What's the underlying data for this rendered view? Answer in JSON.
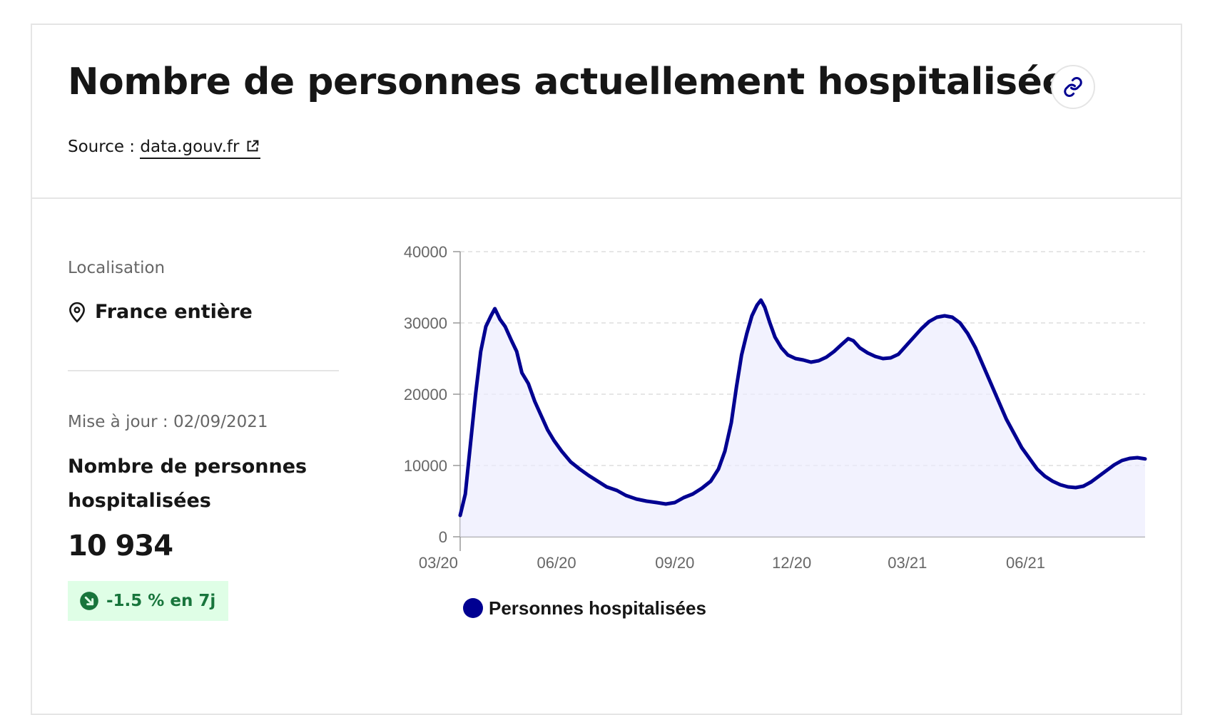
{
  "header": {
    "title": "Nombre de personnes actuellement hospitalisées",
    "source_label": "Source :",
    "source_link": "data.gouv.fr",
    "link_icon": "link-icon",
    "external_icon": "external-link-icon"
  },
  "location": {
    "label": "Localisation",
    "value": "France entière",
    "icon": "map-pin-icon"
  },
  "indicator": {
    "updated": "Mise à jour : 02/09/2021",
    "title": "Nombre de personnes hospitalisées",
    "value": "10 934",
    "trend": "-1.5 % en 7j",
    "trend_icon": "arrow-down-right-icon",
    "trend_color": "#18753c",
    "trend_bg": "#dffee6"
  },
  "colors": {
    "line": "#000091",
    "fill": "#ececfe",
    "grid": "#dddddd",
    "axis": "#666666"
  },
  "chart_data": {
    "type": "area",
    "title": "",
    "xlabel": "",
    "ylabel": "",
    "ylim": [
      0,
      40000
    ],
    "yticks": [
      0,
      10000,
      20000,
      30000,
      40000
    ],
    "xticks": [
      "03/20",
      "06/20",
      "09/20",
      "12/20",
      "03/21",
      "06/21"
    ],
    "xlim": [
      "2020-03-18",
      "2021-09-02"
    ],
    "grid": true,
    "legend_position": "bottom",
    "series": [
      {
        "name": "Personnes hospitalisées",
        "color": "#000091",
        "points": [
          [
            "2020-03-18",
            3000
          ],
          [
            "2020-03-22",
            6000
          ],
          [
            "2020-03-26",
            13000
          ],
          [
            "2020-03-30",
            20000
          ],
          [
            "2020-04-03",
            26000
          ],
          [
            "2020-04-07",
            29500
          ],
          [
            "2020-04-11",
            31000
          ],
          [
            "2020-04-14",
            32000
          ],
          [
            "2020-04-18",
            30500
          ],
          [
            "2020-04-22",
            29500
          ],
          [
            "2020-04-27",
            27500
          ],
          [
            "2020-05-01",
            26000
          ],
          [
            "2020-05-05",
            23000
          ],
          [
            "2020-05-10",
            21500
          ],
          [
            "2020-05-15",
            19000
          ],
          [
            "2020-05-20",
            17000
          ],
          [
            "2020-05-25",
            15000
          ],
          [
            "2020-05-30",
            13500
          ],
          [
            "2020-06-05",
            12000
          ],
          [
            "2020-06-12",
            10500
          ],
          [
            "2020-06-19",
            9500
          ],
          [
            "2020-06-26",
            8600
          ],
          [
            "2020-07-03",
            7800
          ],
          [
            "2020-07-10",
            7000
          ],
          [
            "2020-07-18",
            6500
          ],
          [
            "2020-07-25",
            5800
          ],
          [
            "2020-08-02",
            5300
          ],
          [
            "2020-08-10",
            5000
          ],
          [
            "2020-08-18",
            4800
          ],
          [
            "2020-08-25",
            4600
          ],
          [
            "2020-09-01",
            4800
          ],
          [
            "2020-09-08",
            5500
          ],
          [
            "2020-09-15",
            6000
          ],
          [
            "2020-09-22",
            6800
          ],
          [
            "2020-09-29",
            7800
          ],
          [
            "2020-10-05",
            9500
          ],
          [
            "2020-10-10",
            12000
          ],
          [
            "2020-10-15",
            16000
          ],
          [
            "2020-10-19",
            21000
          ],
          [
            "2020-10-23",
            25500
          ],
          [
            "2020-10-27",
            28500
          ],
          [
            "2020-10-31",
            31000
          ],
          [
            "2020-11-04",
            32500
          ],
          [
            "2020-11-07",
            33200
          ],
          [
            "2020-11-10",
            32200
          ],
          [
            "2020-11-14",
            30000
          ],
          [
            "2020-11-18",
            28000
          ],
          [
            "2020-11-23",
            26500
          ],
          [
            "2020-11-28",
            25500
          ],
          [
            "2020-12-04",
            25000
          ],
          [
            "2020-12-10",
            24800
          ],
          [
            "2020-12-16",
            24500
          ],
          [
            "2020-12-22",
            24700
          ],
          [
            "2020-12-28",
            25200
          ],
          [
            "2021-01-03",
            26000
          ],
          [
            "2021-01-09",
            27000
          ],
          [
            "2021-01-14",
            27800
          ],
          [
            "2021-01-18",
            27500
          ],
          [
            "2021-01-23",
            26500
          ],
          [
            "2021-01-29",
            25800
          ],
          [
            "2021-02-04",
            25300
          ],
          [
            "2021-02-10",
            25000
          ],
          [
            "2021-02-16",
            25100
          ],
          [
            "2021-02-22",
            25600
          ],
          [
            "2021-02-28",
            26800
          ],
          [
            "2021-03-06",
            28000
          ],
          [
            "2021-03-12",
            29200
          ],
          [
            "2021-03-18",
            30200
          ],
          [
            "2021-03-24",
            30800
          ],
          [
            "2021-03-30",
            31000
          ],
          [
            "2021-04-05",
            30800
          ],
          [
            "2021-04-11",
            30000
          ],
          [
            "2021-04-17",
            28500
          ],
          [
            "2021-04-23",
            26500
          ],
          [
            "2021-04-29",
            24000
          ],
          [
            "2021-05-05",
            21500
          ],
          [
            "2021-05-11",
            19000
          ],
          [
            "2021-05-17",
            16500
          ],
          [
            "2021-05-23",
            14500
          ],
          [
            "2021-05-29",
            12500
          ],
          [
            "2021-06-04",
            11000
          ],
          [
            "2021-06-10",
            9500
          ],
          [
            "2021-06-16",
            8500
          ],
          [
            "2021-06-22",
            7800
          ],
          [
            "2021-06-28",
            7300
          ],
          [
            "2021-07-04",
            7000
          ],
          [
            "2021-07-10",
            6900
          ],
          [
            "2021-07-16",
            7100
          ],
          [
            "2021-07-22",
            7700
          ],
          [
            "2021-07-28",
            8500
          ],
          [
            "2021-08-03",
            9300
          ],
          [
            "2021-08-09",
            10100
          ],
          [
            "2021-08-15",
            10700
          ],
          [
            "2021-08-21",
            11000
          ],
          [
            "2021-08-27",
            11100
          ],
          [
            "2021-09-02",
            10934
          ]
        ]
      }
    ]
  }
}
